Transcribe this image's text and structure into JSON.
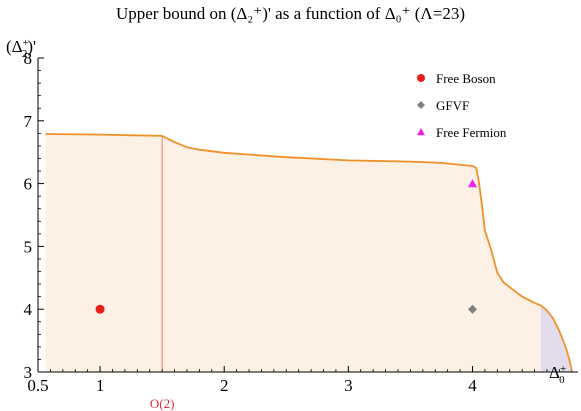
{
  "chart_data": {
    "type": "area",
    "title": "Upper bound on (Δ₂⁺)' as a function of Δ₀⁺ (Λ=23)",
    "xlabel": {
      "base": "Δ",
      "sub": "0",
      "sup": "+"
    },
    "ylabel": {
      "open": "(Δ",
      "sub": "2",
      "sup": "+",
      "close": ")'"
    },
    "xlim": [
      0.5,
      4.85
    ],
    "ylim": [
      3,
      8
    ],
    "x_ticks": [
      0.5,
      1,
      2,
      3,
      4
    ],
    "x_tick_labels": [
      "0.5",
      "1",
      "2",
      "3",
      "4"
    ],
    "y_ticks": [
      3,
      4,
      5,
      6,
      7,
      8
    ],
    "y_tick_labels": [
      "3",
      "4",
      "5",
      "6",
      "7",
      "8"
    ],
    "grid": false,
    "legend_position": "top-right",
    "colors": {
      "bound_line": "#f0902a",
      "allowed_fill": "#fdf0e4",
      "shaded_fill": "#e3dcec",
      "annotation_line": "#e88070",
      "annotation_text": "#e03030",
      "free_boson": "#e8201c",
      "gfvf": "#808080",
      "free_fermion": "#ee22ee"
    },
    "bound_curve": {
      "x": [
        0.56,
        1.0,
        1.5,
        1.53,
        1.6,
        1.7,
        1.8,
        2.0,
        2.5,
        3.0,
        3.5,
        3.75,
        4.0,
        4.03,
        4.05,
        4.08,
        4.1,
        4.15,
        4.2,
        4.25,
        4.3,
        4.4,
        4.5,
        4.55,
        4.6,
        4.65,
        4.7,
        4.75,
        4.78,
        4.8
      ],
      "y": [
        6.79,
        6.78,
        6.76,
        6.73,
        6.66,
        6.58,
        6.54,
        6.49,
        6.42,
        6.37,
        6.35,
        6.33,
        6.28,
        6.25,
        6.05,
        5.6,
        5.25,
        4.95,
        4.58,
        4.43,
        4.35,
        4.2,
        4.1,
        4.06,
        3.98,
        3.85,
        3.65,
        3.4,
        3.2,
        3.02
      ]
    },
    "shaded_region": {
      "x_start": 4.55
    },
    "annotations": [
      {
        "text": "O(2)",
        "x": 1.5
      }
    ],
    "series": [
      {
        "name": "Free Boson",
        "marker": "circle",
        "x": [
          1.0
        ],
        "y": [
          4.0
        ]
      },
      {
        "name": "GFVF",
        "marker": "diamond",
        "x": [
          4.0
        ],
        "y": [
          4.0
        ]
      },
      {
        "name": "Free Fermion",
        "marker": "triangle",
        "x": [
          4.0
        ],
        "y": [
          6.0
        ]
      }
    ]
  }
}
